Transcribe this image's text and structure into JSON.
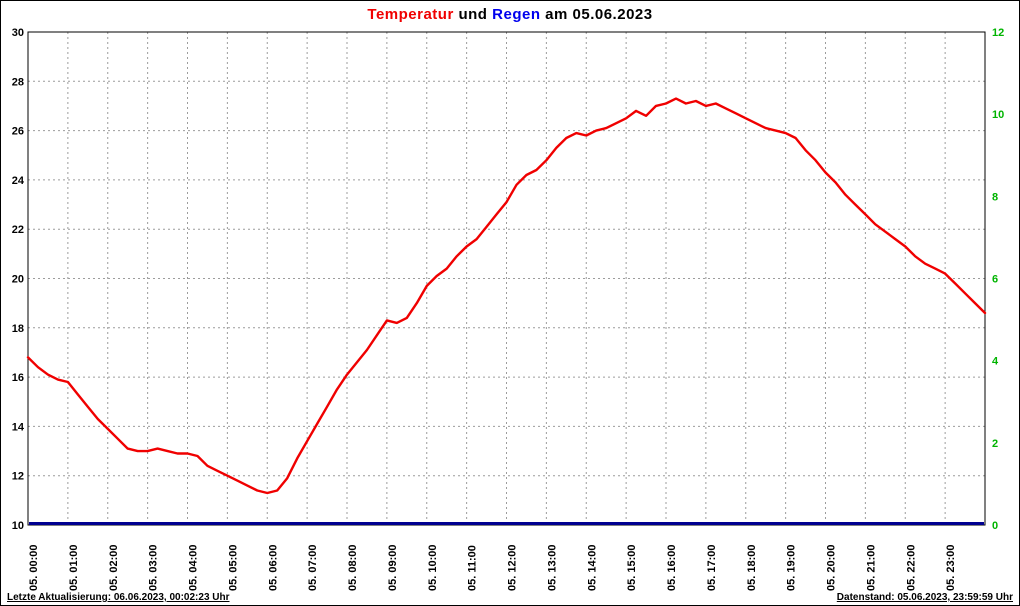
{
  "title": {
    "part_temperatur": "Temperatur",
    "part_und": "und",
    "part_regen": "Regen",
    "part_am_date": "am 05.06.2023"
  },
  "footer": {
    "last_update": "Letzte Aktualisierung: 06.06.2023, 00:02:23 Uhr",
    "data_state": "Datenstand: 05.06.2023, 23:59:59 Uhr"
  },
  "colors": {
    "temperature_line": "#f00000",
    "rain_line": "#000090",
    "title_red": "#f00000",
    "title_blue": "#0000ee",
    "right_axis_green": "#00b400",
    "grid": "#9c9c9c",
    "background": "#ffffff"
  },
  "chart_data": {
    "type": "line",
    "title": "Temperatur und Regen am 05.06.2023",
    "grid": true,
    "x_axis": {
      "hours_total": 24,
      "label_rotation_deg": -90,
      "labels": [
        "05. 00:00",
        "05. 01:00",
        "05. 02:00",
        "05. 03:00",
        "05. 04:00",
        "05. 05:00",
        "05. 06:00",
        "05. 07:00",
        "05. 08:00",
        "05. 09:00",
        "05. 10:00",
        "05. 11:00",
        "05. 12:00",
        "05. 13:00",
        "05. 14:00",
        "05. 15:00",
        "05. 16:00",
        "05. 17:00",
        "05. 18:00",
        "05. 19:00",
        "05. 20:00",
        "05. 21:00",
        "05. 22:00",
        "05. 23:00"
      ]
    },
    "y_left": {
      "range": [
        10,
        30
      ],
      "ticks": [
        10,
        12,
        14,
        16,
        18,
        20,
        22,
        24,
        26,
        28,
        30
      ]
    },
    "y_right": {
      "range": [
        0,
        12
      ],
      "ticks": [
        0,
        2,
        4,
        6,
        8,
        10,
        12
      ]
    },
    "series": [
      {
        "name": "Temperatur",
        "axis": "left",
        "color": "#f00000",
        "start_minute": 0,
        "interval_minutes": 15,
        "values": [
          16.8,
          16.4,
          16.1,
          15.9,
          15.8,
          15.3,
          14.8,
          14.3,
          13.9,
          13.5,
          13.1,
          13.0,
          13.0,
          13.1,
          13.0,
          12.9,
          12.9,
          12.8,
          12.4,
          12.2,
          12.0,
          11.8,
          11.6,
          11.4,
          11.3,
          11.4,
          11.9,
          12.7,
          13.4,
          14.1,
          14.8,
          15.5,
          16.1,
          16.6,
          17.1,
          17.7,
          18.3,
          18.2,
          18.4,
          19.0,
          19.7,
          20.1,
          20.4,
          20.9,
          21.3,
          21.6,
          22.1,
          22.6,
          23.1,
          23.8,
          24.2,
          24.4,
          24.8,
          25.3,
          25.7,
          25.9,
          25.8,
          26.0,
          26.1,
          26.3,
          26.5,
          26.8,
          26.6,
          27.0,
          27.1,
          27.3,
          27.1,
          27.2,
          27.0,
          27.1,
          26.9,
          26.7,
          26.5,
          26.3,
          26.1,
          26.0,
          25.9,
          25.7,
          25.2,
          24.8,
          24.3,
          23.9,
          23.4,
          23.0,
          22.6,
          22.2,
          21.9,
          21.6,
          21.3,
          20.9,
          20.6,
          20.4,
          20.2,
          19.8,
          19.4,
          19.0,
          18.6
        ]
      },
      {
        "name": "Regen",
        "axis": "right",
        "color": "#000090",
        "constant_value": 0
      }
    ]
  }
}
